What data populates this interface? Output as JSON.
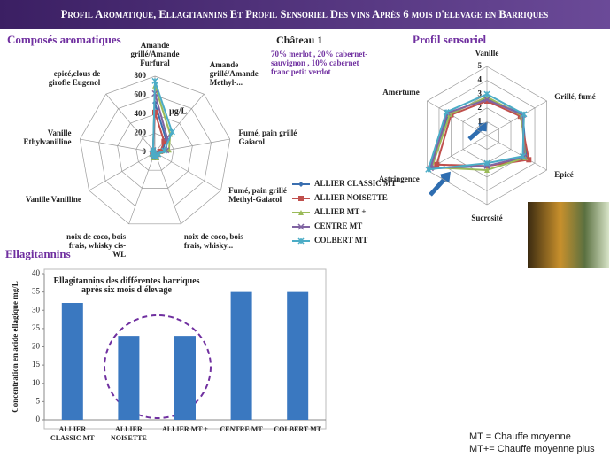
{
  "header": {
    "title": "Profil Aromatique, Ellagitannins Et Profil Sensoriel Des vins Après 6 mois d'elevage en Barriques"
  },
  "sections": {
    "aromatic": "Composés aromatiques",
    "sensory": "Profil sensoriel",
    "ellagitannins": "Ellagitannins"
  },
  "wine": {
    "name": "Château 1",
    "blend": "70% merlot , 20% cabernet-sauvignon , 10% cabernet franc petit verdot"
  },
  "notes": [
    "MT = Chauffe moyenne",
    "MT+= Chauffe moyenne plus"
  ],
  "chart_data": [
    {
      "type": "radar",
      "unit": "µg/L",
      "categories": [
        "Amande grillé/Amande Furfural",
        "Amande grillé/Amande Methyl-...",
        "Fumé, pain grillé Gaiacol",
        "Fumé, pain grillé Methyl-Gaiacol",
        "noix de coco, bois frais, whisky...",
        "noix de coco, bois frais, whisky cis-WL",
        "Vanille Vanilline",
        "Vanille Ethylvanilline",
        "epicé,clous de girofle Eugenol"
      ],
      "ylim": [
        0,
        800
      ],
      "yticks": [
        0,
        200,
        400,
        600,
        800
      ],
      "series": [
        {
          "name": "ALLIER CLASSIC MT",
          "color": "#3a6fb0",
          "values": [
            520,
            180,
            80,
            30,
            40,
            40,
            30,
            20,
            30
          ]
        },
        {
          "name": "ALLIER NOISETTE",
          "color": "#c0504d",
          "values": [
            420,
            150,
            60,
            30,
            40,
            30,
            30,
            20,
            30
          ]
        },
        {
          "name": "ALLIER MT +",
          "color": "#9bbb59",
          "values": [
            700,
            250,
            150,
            40,
            60,
            60,
            40,
            20,
            30
          ]
        },
        {
          "name": "CENTRE MT",
          "color": "#8064a2",
          "values": [
            620,
            200,
            120,
            30,
            50,
            50,
            30,
            20,
            30
          ]
        },
        {
          "name": "COLBERT MT",
          "color": "#4bacc6",
          "values": [
            750,
            280,
            100,
            40,
            50,
            40,
            30,
            20,
            30
          ]
        }
      ]
    },
    {
      "type": "radar",
      "categories": [
        "Vanille",
        "Grillé, fumé",
        "Epicé",
        "Sucrosité",
        "Astringence",
        "Amertume"
      ],
      "ylim": [
        0,
        5
      ],
      "yticks": [
        1,
        2,
        3,
        4,
        5
      ],
      "series": [
        {
          "color": "#3a6fb0",
          "values": [
            2.7,
            3,
            3.3,
            2.2,
            4.8,
            3.2
          ]
        },
        {
          "color": "#c0504d",
          "values": [
            2.5,
            2.8,
            3.5,
            2.2,
            4.2,
            3
          ]
        },
        {
          "color": "#9bbb59",
          "values": [
            2.8,
            2.9,
            3.2,
            2.5,
            4.6,
            3.1
          ]
        },
        {
          "color": "#8064a2",
          "values": [
            2.6,
            3,
            3.1,
            2.2,
            4.7,
            3.3
          ]
        },
        {
          "color": "#4bacc6",
          "values": [
            3,
            3.1,
            3,
            2,
            4.9,
            3.4
          ]
        }
      ]
    },
    {
      "type": "bar",
      "title": "Ellagitannins des différentes barriques après six mois d'élevage",
      "y_label": "Concentration en acide ellagique mg/L",
      "categories": [
        "ALLIER CLASSIC MT",
        "ALLIER NOISETTE",
        "ALLIER MT +",
        "CENTRE MT",
        "COLBERT MT"
      ],
      "values": [
        32,
        23,
        23,
        35,
        35
      ],
      "color": "#3a78c0",
      "ylim": [
        0,
        40
      ],
      "yticks": [
        0,
        5,
        10,
        15,
        20,
        25,
        30,
        35,
        40
      ]
    }
  ]
}
